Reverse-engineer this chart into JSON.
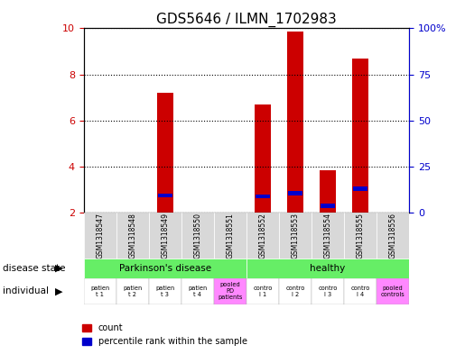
{
  "title": "GDS5646 / ILMN_1702983",
  "samples": [
    "GSM1318547",
    "GSM1318548",
    "GSM1318549",
    "GSM1318550",
    "GSM1318551",
    "GSM1318552",
    "GSM1318553",
    "GSM1318554",
    "GSM1318555",
    "GSM1318556"
  ],
  "count_values": [
    0,
    0,
    7.2,
    0,
    0,
    6.7,
    9.85,
    3.85,
    8.7,
    0
  ],
  "percentile_values": [
    0,
    0,
    2.65,
    0,
    0,
    2.6,
    2.75,
    2.2,
    2.95,
    0
  ],
  "ylim_left": [
    2,
    10
  ],
  "ylim_right": [
    0,
    100
  ],
  "yticks_left": [
    2,
    4,
    6,
    8,
    10
  ],
  "ytick_labels_left": [
    "2",
    "4",
    "6",
    "8",
    "10"
  ],
  "ytick_labels_right": [
    "0",
    "25",
    "50",
    "75",
    "100%"
  ],
  "bar_color_red": "#cc0000",
  "bar_color_blue": "#0000cc",
  "background_color": "#ffffff",
  "plot_bg_color": "#ffffff",
  "left_tick_color": "#cc0000",
  "right_tick_color": "#0000cc",
  "individual_labels": [
    "patien\nt 1",
    "patien\nt 2",
    "patien\nt 3",
    "patien\nt 4",
    "pooled\nPD\npatients",
    "contro\nl 1",
    "contro\nl 2",
    "contro\nl 3",
    "contro\nl 4",
    "pooled\ncontrols"
  ],
  "individual_colors": [
    "#ffffff",
    "#ffffff",
    "#ffffff",
    "#ffffff",
    "#ff88ff",
    "#ffffff",
    "#ffffff",
    "#ffffff",
    "#ffffff",
    "#ff88ff"
  ],
  "bar_width": 0.5
}
